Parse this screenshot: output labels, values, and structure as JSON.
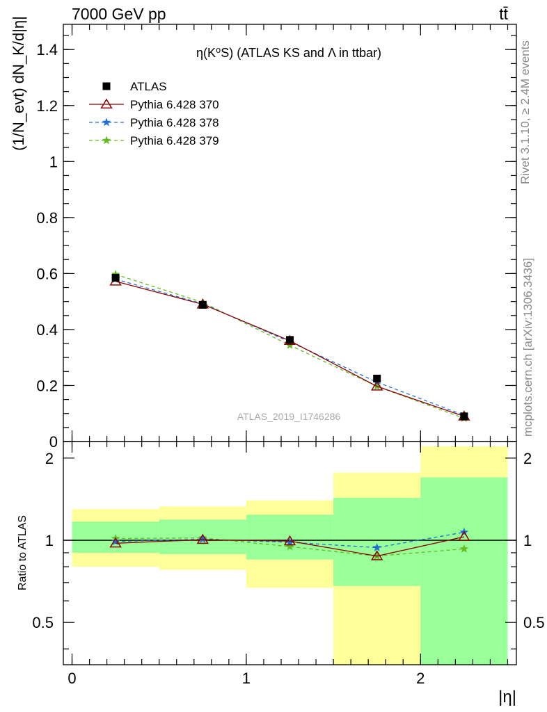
{
  "header": {
    "energy": "7000 GeV pp",
    "process": "tt̄",
    "side_rivet": "Rivet 3.1.10, ≥ 2.4M events",
    "side_mcplots": "mcplots.cern.ch [arXiv:1306.3436]",
    "watermark": "ATLAS_2019_I1746286"
  },
  "colors": {
    "atlas": "#000000",
    "p370": "#8b0000",
    "p378": "#1f6fd6",
    "p379": "#66bb22",
    "band_inner": "#99ff99",
    "band_outer": "#ffff99"
  },
  "chart_data": [
    {
      "type": "line",
      "title": "η(K⁰S) (ATLAS KS and Λ in ttbar)",
      "xlabel": "|η|",
      "ylabel": "(1/N_evt) dN_K/d|η|",
      "xlim": [
        -0.05,
        2.55
      ],
      "ylim": [
        0,
        1.49
      ],
      "yticks": [
        0,
        0.2,
        0.4,
        0.6,
        0.8,
        1,
        1.2,
        1.4
      ],
      "ytick_labels": [
        "0",
        "0.2",
        "0.4",
        "0.6",
        "0.8",
        "1",
        "1.2",
        "1.4"
      ],
      "legend_position": "top-left",
      "x": [
        0.25,
        0.75,
        1.25,
        1.75,
        2.25
      ],
      "series": [
        {
          "name": "ATLAS",
          "marker": "square",
          "values": [
            0.585,
            0.488,
            0.363,
            0.225,
            0.09
          ]
        },
        {
          "name": "Pythia 6.428 370",
          "marker": "triangle-open",
          "line": "solid",
          "values": [
            0.572,
            0.49,
            0.36,
            0.197,
            0.09
          ]
        },
        {
          "name": "Pythia 6.428 378",
          "marker": "star",
          "line": "dashed",
          "values": [
            0.58,
            0.492,
            0.356,
            0.212,
            0.094
          ]
        },
        {
          "name": "Pythia 6.428 379",
          "marker": "star",
          "line": "dashed",
          "values": [
            0.597,
            0.497,
            0.344,
            0.197,
            0.083
          ]
        }
      ]
    },
    {
      "type": "line",
      "ylabel": "Ratio to ATLAS",
      "xlabel": "|η|",
      "xlim": [
        -0.05,
        2.55
      ],
      "ylim": [
        0.35,
        2.3
      ],
      "scale_y": "log",
      "yticks": [
        0.5,
        1,
        2
      ],
      "ytick_labels": [
        "0.5",
        "1",
        "2"
      ],
      "xticks": [
        0,
        1,
        2
      ],
      "xtick_labels": [
        "0",
        "1",
        "2"
      ],
      "bins": [
        {
          "lo": 0.0,
          "hi": 0.5,
          "inner": [
            0.9,
            1.17
          ],
          "outer": [
            0.8,
            1.3
          ]
        },
        {
          "lo": 0.5,
          "hi": 1.0,
          "inner": [
            0.89,
            1.19
          ],
          "outer": [
            0.78,
            1.33
          ]
        },
        {
          "lo": 1.0,
          "hi": 1.5,
          "inner": [
            0.85,
            1.24
          ],
          "outer": [
            0.67,
            1.4
          ]
        },
        {
          "lo": 1.5,
          "hi": 2.0,
          "inner": [
            0.68,
            1.43
          ],
          "outer": [
            0.35,
            1.77
          ]
        },
        {
          "lo": 2.0,
          "hi": 2.5,
          "inner": [
            0.35,
            1.7
          ],
          "outer": [
            0.35,
            2.21
          ]
        }
      ],
      "x": [
        0.25,
        0.75,
        1.25,
        1.75,
        2.25
      ],
      "series": [
        {
          "name": "Pythia 6.428 370",
          "values": [
            0.975,
            1.005,
            0.993,
            0.875,
            1.03
          ]
        },
        {
          "name": "Pythia 6.428 378",
          "values": [
            0.99,
            1.009,
            0.983,
            0.94,
            1.07
          ]
        },
        {
          "name": "Pythia 6.428 379",
          "values": [
            1.015,
            1.02,
            0.948,
            0.875,
            0.93
          ]
        }
      ]
    }
  ]
}
